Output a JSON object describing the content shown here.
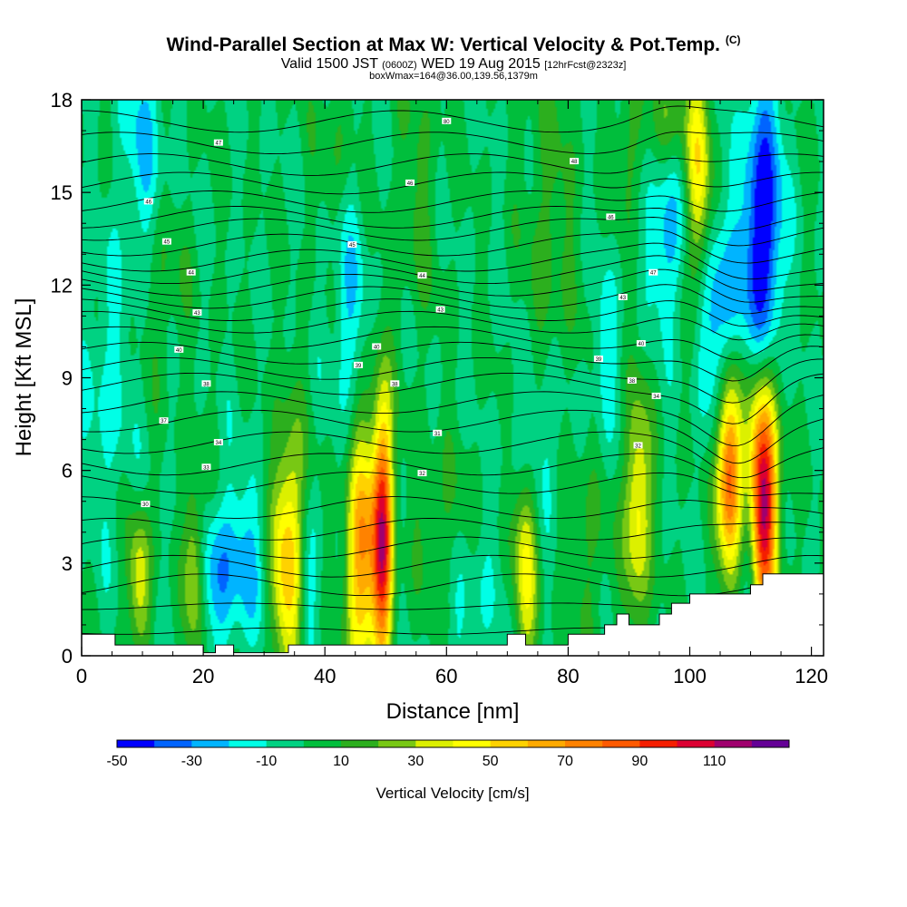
{
  "header": {
    "title": "Wind-Parallel Section at Max W: Vertical Velocity & Pot.Temp.",
    "title_mark": "(C)",
    "subtitle_a": "Valid 1500 JST",
    "subtitle_b": "(0600Z)",
    "subtitle_c": "WED 19 Aug 2015",
    "subtitle_d": "[12hrFcst@2323z]",
    "subtitle2": "boxWmax=164@36.00,139.56,1379m"
  },
  "chart_data": {
    "type": "heatmap",
    "xlabel": "Distance [nm]",
    "ylabel": "Height [Kft MSL]",
    "xlim": [
      0,
      122
    ],
    "ylim": [
      0,
      18
    ],
    "x_ticks": [
      "0",
      "20",
      "40",
      "60",
      "80",
      "100",
      "120"
    ],
    "y_ticks": [
      "0",
      "3",
      "6",
      "9",
      "12",
      "15",
      "18"
    ],
    "colorbar": {
      "title": "Vertical Velocity [cm/s]",
      "labels": [
        "-50",
        "-30",
        "-10",
        "10",
        "30",
        "50",
        "70",
        "90",
        "110"
      ],
      "levels": [
        -50,
        -40,
        -30,
        -20,
        -10,
        0,
        10,
        20,
        30,
        40,
        50,
        60,
        70,
        80,
        90,
        100,
        110,
        120
      ],
      "colors": [
        "#0000ff",
        "#0064ff",
        "#00b4ff",
        "#00ffe6",
        "#00d282",
        "#00be3c",
        "#2caf1e",
        "#78c814",
        "#dcf000",
        "#ffff00",
        "#ffd200",
        "#ffaa00",
        "#ff8200",
        "#ff5a00",
        "#f51e00",
        "#dc0032",
        "#a0006e",
        "#640096"
      ]
    },
    "background_w": 0,
    "updraft_cells": [
      {
        "x": 9.5,
        "y": 2.5,
        "amp": 38,
        "sx": 1.3,
        "sy": 1.6
      },
      {
        "x": 18.5,
        "y": 2.8,
        "amp": 42,
        "sx": 1.2,
        "sy": 2.0
      },
      {
        "x": 34,
        "y": 3.2,
        "amp": 62,
        "sx": 2.0,
        "sy": 2.8
      },
      {
        "x": 46,
        "y": 3.2,
        "amp": 68,
        "sx": 1.8,
        "sy": 3.0
      },
      {
        "x": 49.5,
        "y": 4.0,
        "amp": 100,
        "sx": 1.2,
        "sy": 3.0
      },
      {
        "x": 73,
        "y": 3.0,
        "amp": 42,
        "sx": 1.4,
        "sy": 2.5
      },
      {
        "x": 91.5,
        "y": 4.8,
        "amp": 48,
        "sx": 1.5,
        "sy": 2.5
      },
      {
        "x": 106.5,
        "y": 6.0,
        "amp": 92,
        "sx": 1.4,
        "sy": 2.3
      },
      {
        "x": 112,
        "y": 5.2,
        "amp": 122,
        "sx": 1.7,
        "sy": 2.8
      },
      {
        "x": 101.5,
        "y": 15.5,
        "amp": 48,
        "sx": 1.4,
        "sy": 2.6
      },
      {
        "x": 97,
        "y": 17.5,
        "amp": 20,
        "sx": 2.2,
        "sy": 1.2
      },
      {
        "x": 90,
        "y": 16.5,
        "amp": 14,
        "sx": 2.0,
        "sy": 1.5
      },
      {
        "x": 13,
        "y": 12.0,
        "amp": 12,
        "sx": 3.0,
        "sy": 2.0
      },
      {
        "x": 77,
        "y": 13.5,
        "amp": 14,
        "sx": 3.0,
        "sy": 4.0
      },
      {
        "x": 55,
        "y": 15.0,
        "amp": 12,
        "sx": 2.5,
        "sy": 3.0
      },
      {
        "x": 42,
        "y": 16.5,
        "amp": 10,
        "sx": 2.5,
        "sy": 2.0
      },
      {
        "x": 60,
        "y": 4.0,
        "amp": 12,
        "sx": 4.0,
        "sy": 2.0
      },
      {
        "x": 83,
        "y": 3.5,
        "amp": 12,
        "sx": 3.0,
        "sy": 2.5
      }
    ],
    "downdraft_cells": [
      {
        "x": 112,
        "y": 13.5,
        "amp": -55,
        "sx": 2.2,
        "sy": 3.5
      },
      {
        "x": 105,
        "y": 11.0,
        "amp": -32,
        "sx": 2.5,
        "sy": 2.5
      },
      {
        "x": 96,
        "y": 13.5,
        "amp": -26,
        "sx": 2.0,
        "sy": 2.0
      },
      {
        "x": 110,
        "y": 3.5,
        "amp": -30,
        "sx": 1.2,
        "sy": 1.8
      },
      {
        "x": 37,
        "y": 2.5,
        "amp": -22,
        "sx": 1.5,
        "sy": 2.0
      },
      {
        "x": 22,
        "y": 2.6,
        "amp": -22,
        "sx": 3.0,
        "sy": 1.6
      },
      {
        "x": 27,
        "y": 3.2,
        "amp": -18,
        "sx": 3.0,
        "sy": 2.0
      },
      {
        "x": 10,
        "y": 16.5,
        "amp": -20,
        "sx": 2.5,
        "sy": 3.0
      },
      {
        "x": 44,
        "y": 11.0,
        "amp": -20,
        "sx": 2.0,
        "sy": 3.0
      },
      {
        "x": 75,
        "y": 7.0,
        "amp": -18,
        "sx": 3.0,
        "sy": 2.0
      },
      {
        "x": 64,
        "y": 2.0,
        "amp": -14,
        "sx": 3.0,
        "sy": 2.0
      },
      {
        "x": 4,
        "y": 8.5,
        "amp": -14,
        "sx": 3.0,
        "sy": 3.0
      },
      {
        "x": 86,
        "y": 9.5,
        "amp": -18,
        "sx": 1.5,
        "sy": 2.0
      }
    ],
    "theta_contour_heights": [
      0.8,
      1.6,
      2.3,
      2.9,
      3.5,
      4.1,
      4.8,
      5.6,
      6.2,
      6.9,
      7.6,
      8.2,
      8.8,
      9.3,
      9.8,
      10.3,
      10.8,
      11.2,
      11.6,
      12.0,
      12.4,
      12.8,
      13.3,
      13.8,
      14.2,
      14.7,
      15.3,
      15.9,
      16.6,
      17.3
    ],
    "theta_contour_labels": [
      {
        "text": "80",
        "x": 60,
        "y": 17.3
      },
      {
        "text": "47",
        "x": 22.5,
        "y": 16.6
      },
      {
        "text": "48",
        "x": 81,
        "y": 16.0
      },
      {
        "text": "46",
        "x": 54,
        "y": 15.3
      },
      {
        "text": "46",
        "x": 11,
        "y": 14.7
      },
      {
        "text": "46",
        "x": 87,
        "y": 14.2
      },
      {
        "text": "45",
        "x": 14,
        "y": 13.4
      },
      {
        "text": "45",
        "x": 44.5,
        "y": 13.3
      },
      {
        "text": "47",
        "x": 94,
        "y": 12.4
      },
      {
        "text": "44",
        "x": 18,
        "y": 12.4
      },
      {
        "text": "44",
        "x": 56,
        "y": 12.3
      },
      {
        "text": "43",
        "x": 89,
        "y": 11.6
      },
      {
        "text": "43",
        "x": 19,
        "y": 11.1
      },
      {
        "text": "43",
        "x": 59,
        "y": 11.2
      },
      {
        "text": "40",
        "x": 92,
        "y": 10.1
      },
      {
        "text": "40",
        "x": 16,
        "y": 9.9
      },
      {
        "text": "40",
        "x": 48.5,
        "y": 10.0
      },
      {
        "text": "39",
        "x": 85,
        "y": 9.6
      },
      {
        "text": "39",
        "x": 45.5,
        "y": 9.4
      },
      {
        "text": "38",
        "x": 90.5,
        "y": 8.9
      },
      {
        "text": "38",
        "x": 20.5,
        "y": 8.8
      },
      {
        "text": "38",
        "x": 51.5,
        "y": 8.8
      },
      {
        "text": "34",
        "x": 94.5,
        "y": 8.4
      },
      {
        "text": "37",
        "x": 13.5,
        "y": 7.6
      },
      {
        "text": "31",
        "x": 58.5,
        "y": 7.2
      },
      {
        "text": "34",
        "x": 22.5,
        "y": 6.9
      },
      {
        "text": "32",
        "x": 91.5,
        "y": 6.8
      },
      {
        "text": "33",
        "x": 20.5,
        "y": 6.1
      },
      {
        "text": "32",
        "x": 56,
        "y": 5.9
      },
      {
        "text": "30",
        "x": 10.5,
        "y": 4.9
      }
    ],
    "terrain": [
      [
        0,
        0.7
      ],
      [
        5.5,
        0.7
      ],
      [
        5.5,
        0.35
      ],
      [
        20,
        0.35
      ],
      [
        20,
        0.1
      ],
      [
        22,
        0.1
      ],
      [
        22,
        0.35
      ],
      [
        25,
        0.35
      ],
      [
        25,
        0.1
      ],
      [
        34,
        0.1
      ],
      [
        34,
        0.35
      ],
      [
        70,
        0.35
      ],
      [
        70,
        0.7
      ],
      [
        73,
        0.7
      ],
      [
        73,
        0.35
      ],
      [
        80,
        0.35
      ],
      [
        80,
        0.7
      ],
      [
        86,
        0.7
      ],
      [
        86,
        1.0
      ],
      [
        88,
        1.0
      ],
      [
        88,
        1.35
      ],
      [
        90,
        1.35
      ],
      [
        90,
        1.0
      ],
      [
        95,
        1.0
      ],
      [
        95,
        1.35
      ],
      [
        97,
        1.35
      ],
      [
        97,
        1.7
      ],
      [
        100,
        1.7
      ],
      [
        100,
        2.0
      ],
      [
        110,
        2.0
      ],
      [
        110,
        2.3
      ],
      [
        112,
        2.3
      ],
      [
        112,
        2.65
      ],
      [
        122,
        2.65
      ]
    ]
  }
}
